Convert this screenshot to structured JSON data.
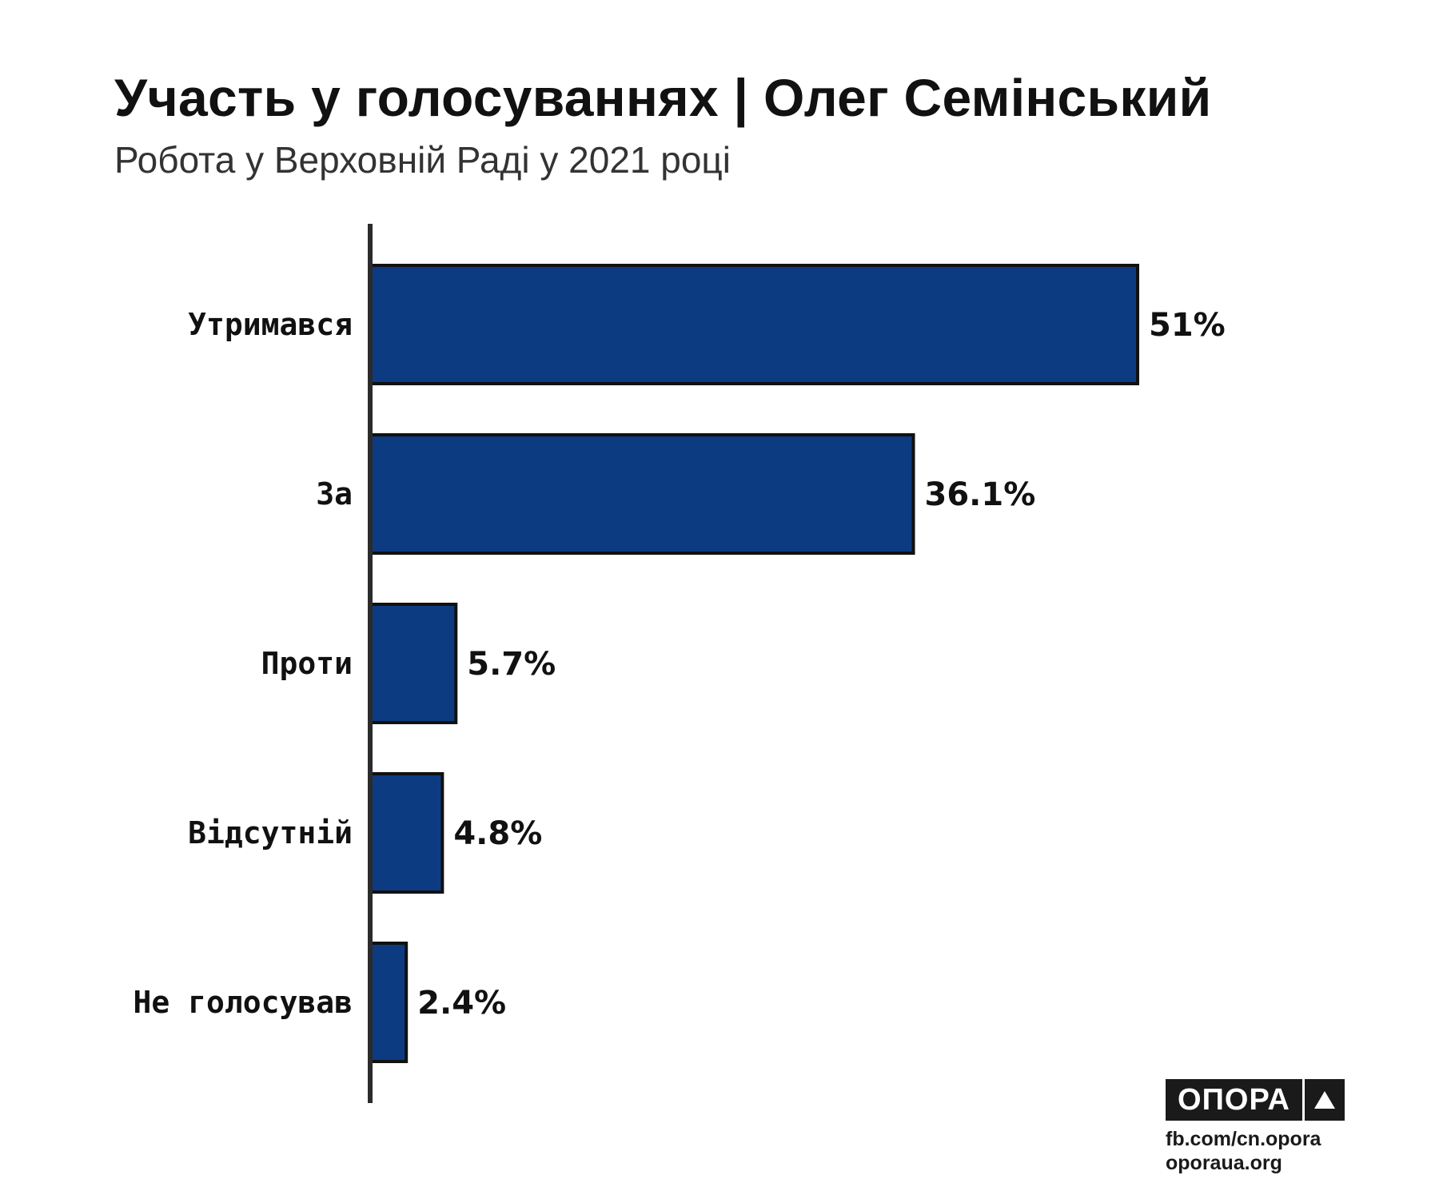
{
  "header": {
    "title": "Участь у голосуваннях | Олег Семінський",
    "subtitle": "Робота у Верховній Раді у 2021 році"
  },
  "chart_data": {
    "type": "bar",
    "orientation": "horizontal",
    "categories": [
      "Утримався",
      "За",
      "Проти",
      "Відсутній",
      "Не голосував"
    ],
    "values": [
      51,
      36.1,
      5.7,
      4.8,
      2.4
    ],
    "value_labels": [
      "51%",
      "36.1%",
      "5.7%",
      "4.8%",
      "2.4%"
    ],
    "title": "Участь у голосуваннях | Олег Семінський",
    "subtitle": "Робота у Верховній Раді у 2021 році",
    "xlabel": "",
    "ylabel": "",
    "xlim": [
      0,
      51
    ],
    "grid": false,
    "bar_color": "#0d3b82",
    "bar_outline_color": "#111111",
    "axis_color": "#2b2b2b"
  },
  "branding": {
    "logo_text": "ОПОРА",
    "logo_icon": "triangle-icon",
    "link_facebook": "fb.com/cn.opora",
    "link_site": "oporaua.org"
  }
}
